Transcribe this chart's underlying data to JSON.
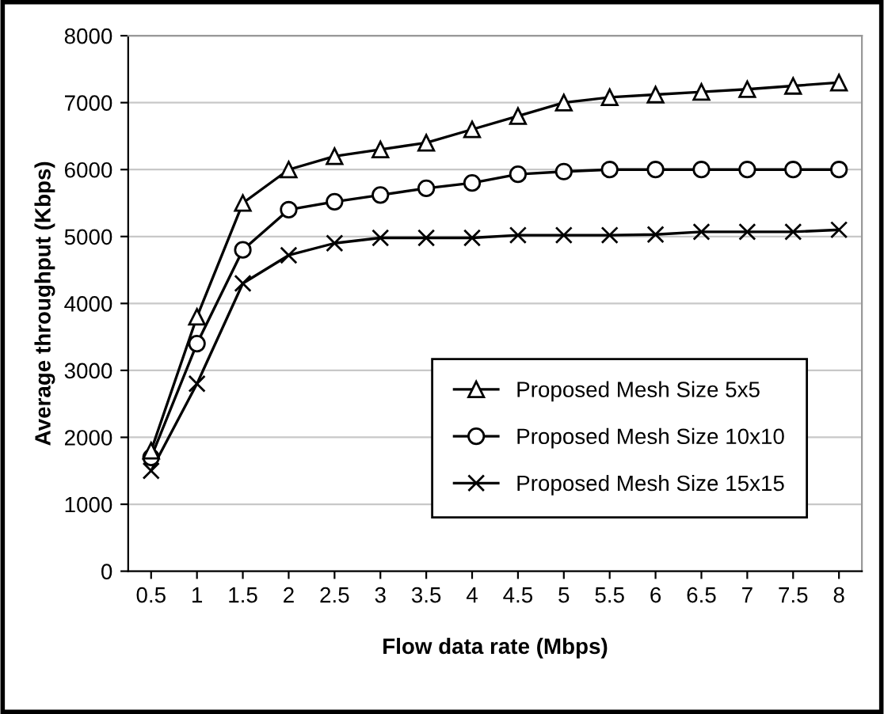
{
  "chart_data": {
    "type": "line",
    "xlabel": "Flow data rate (Mbps)",
    "ylabel": "Average throughput (Kbps)",
    "categories": [
      "0.5",
      "1",
      "1.5",
      "2",
      "2.5",
      "3",
      "3.5",
      "4",
      "4.5",
      "5",
      "5.5",
      "6",
      "6.5",
      "7",
      "7.5",
      "8"
    ],
    "series": [
      {
        "name": "Proposed Mesh Size 5x5",
        "color": "#000000",
        "marker": "triangle",
        "values": [
          1800,
          3800,
          5500,
          6000,
          6200,
          6300,
          6400,
          6600,
          6800,
          7000,
          7080,
          7120,
          7160,
          7200,
          7250,
          7300
        ]
      },
      {
        "name": "Proposed Mesh Size 10x10",
        "color": "#000000",
        "marker": "circle",
        "values": [
          1700,
          3400,
          4800,
          5400,
          5520,
          5620,
          5720,
          5800,
          5930,
          5970,
          6000,
          6000,
          6000,
          6000,
          6000,
          6000
        ]
      },
      {
        "name": "Proposed Mesh Size 15x15",
        "color": "#000000",
        "marker": "cross",
        "values": [
          1500,
          2800,
          4300,
          4720,
          4900,
          4980,
          4980,
          4980,
          5020,
          5020,
          5020,
          5030,
          5070,
          5070,
          5070,
          5100
        ]
      }
    ],
    "ylim": [
      0,
      8000
    ],
    "yticks": [
      0,
      1000,
      2000,
      3000,
      4000,
      5000,
      6000,
      7000,
      8000
    ],
    "grid": "y",
    "legend": "lower right",
    "line_style": "solid"
  }
}
